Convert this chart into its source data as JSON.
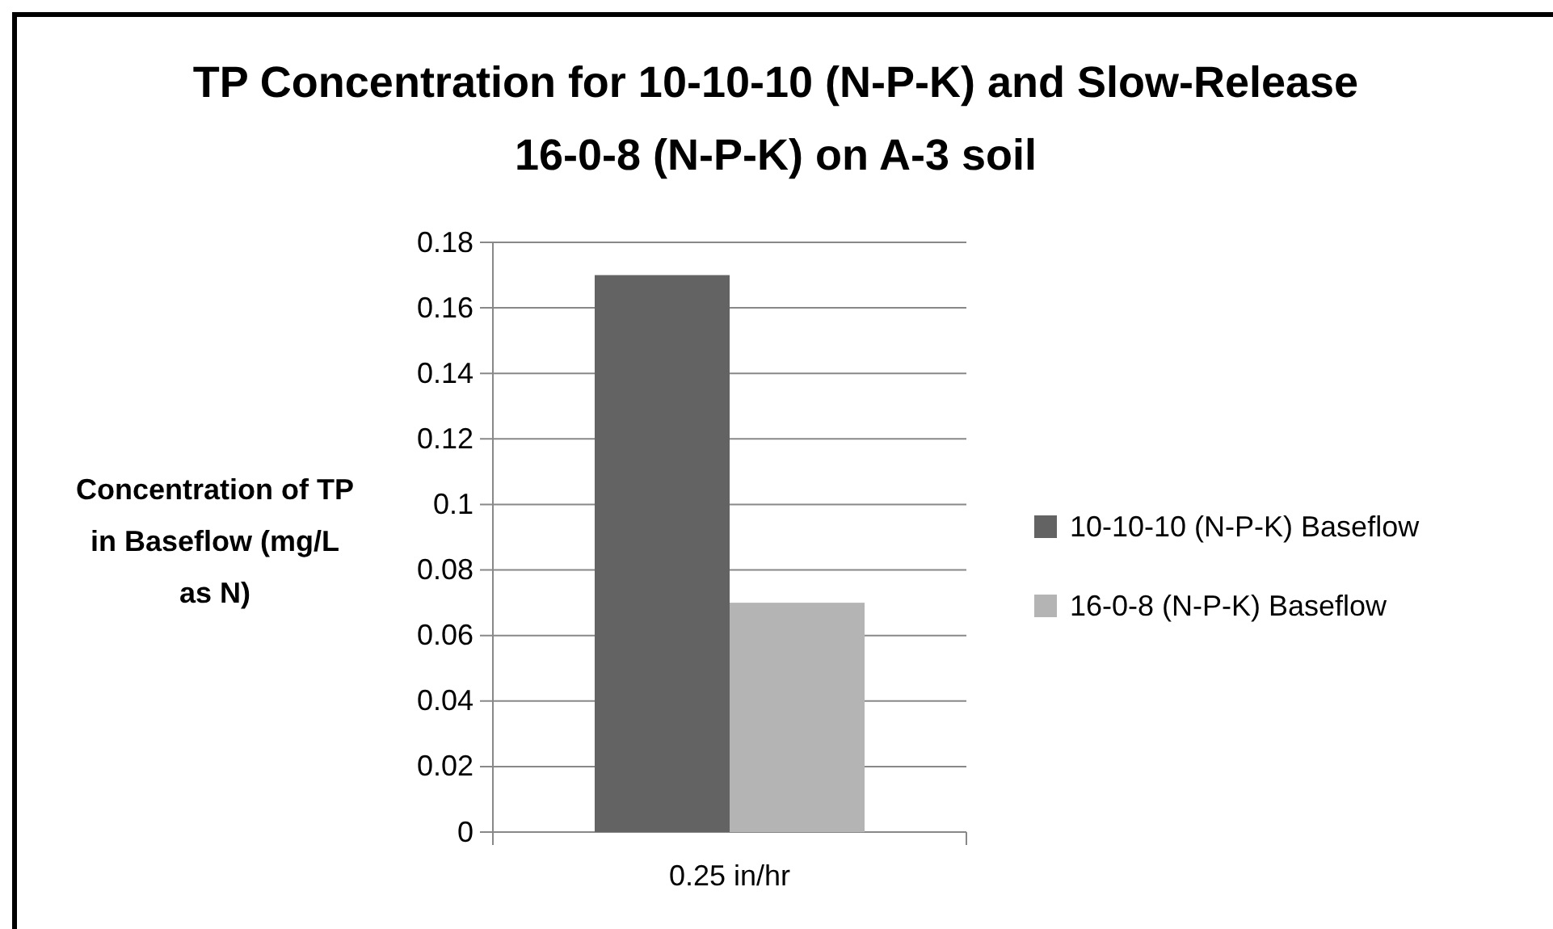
{
  "chart_data": {
    "type": "bar",
    "title": "TP Concentration for 10-10-10 (N-P-K) and Slow-Release 16-0-8 (N-P-K) on A-3 soil",
    "ylabel": "Concentration of TP in Baseflow (mg/L as N)",
    "categories": [
      "0.25 in/hr"
    ],
    "series": [
      {
        "name": "10-10-10 (N-P-K) Baseflow",
        "color": "#636363",
        "values": [
          0.17
        ]
      },
      {
        "name": "16-0-8 (N-P-K) Baseflow",
        "color": "#b4b4b4",
        "values": [
          0.07
        ]
      }
    ],
    "ylim": [
      0,
      0.18
    ],
    "yticks": [
      0,
      0.02,
      0.04,
      0.06,
      0.08,
      0.1,
      0.12,
      0.14,
      0.16,
      0.18
    ],
    "grid": "y",
    "legend": "right"
  }
}
